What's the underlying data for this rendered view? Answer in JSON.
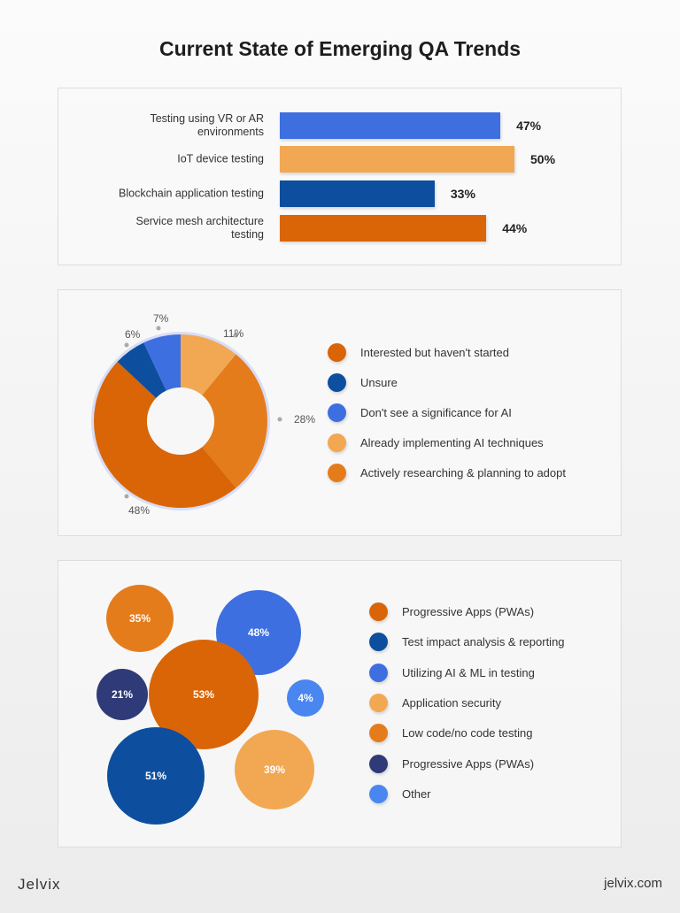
{
  "title": "Current State of Emerging QA Trends",
  "chart_data": [
    {
      "type": "bar",
      "orientation": "horizontal",
      "categories": [
        "Testing using VR or AR environments",
        "IoT device testing",
        "Blockchain application testing",
        "Service mesh architecture testing"
      ],
      "values": [
        47,
        50,
        33,
        44
      ],
      "labels": [
        "47%",
        "50%",
        "33%",
        "44%"
      ],
      "colors": [
        "#3E6FE0",
        "#F2A852",
        "#0D4F9E",
        "#D96507"
      ]
    },
    {
      "type": "pie",
      "donut": true,
      "legend": "right",
      "categories": [
        "Already implementing AI techniques",
        "Actively researching & planning to adopt",
        "Interested but haven't started",
        "Unsure",
        "Don't see a significance for AI"
      ],
      "values": [
        11,
        28,
        48,
        6,
        7
      ],
      "labels": [
        "11%",
        "28%",
        "48%",
        "6%",
        "7%"
      ],
      "colors": [
        "#F2A852",
        "#E57C1C",
        "#D96507",
        "#0D4F9E",
        "#3E6FE0"
      ],
      "legend_entries": [
        {
          "label": "Interested but haven't started",
          "color": "#D96507"
        },
        {
          "label": "Unsure",
          "color": "#0D4F9E"
        },
        {
          "label": "Don't see a significance for AI",
          "color": "#3E6FE0"
        },
        {
          "label": "Already implementing AI techniques",
          "color": "#F2A852"
        },
        {
          "label": "Actively researching & planning to adopt",
          "color": "#E57C1C"
        }
      ]
    },
    {
      "type": "bubble",
      "legend": "right",
      "categories": [
        "Progressive Apps (PWAs)",
        "Test impact analysis & reporting",
        "Utilizing AI & ML in testing",
        "Application security",
        "Low code/no code testing",
        "Progressive Apps (PWAs)",
        "Other"
      ],
      "values": [
        53,
        51,
        48,
        39,
        35,
        21,
        4
      ],
      "labels": [
        "53%",
        "51%",
        "48%",
        "39%",
        "35%",
        "21%",
        "4%"
      ],
      "colors": [
        "#D96507",
        "#0D4F9E",
        "#3E6FE0",
        "#F2A852",
        "#E57C1C",
        "#2F3B78",
        "#4A86F0"
      ]
    }
  ],
  "footer": {
    "logo": "Jelvix",
    "site": "jelvix.com"
  }
}
